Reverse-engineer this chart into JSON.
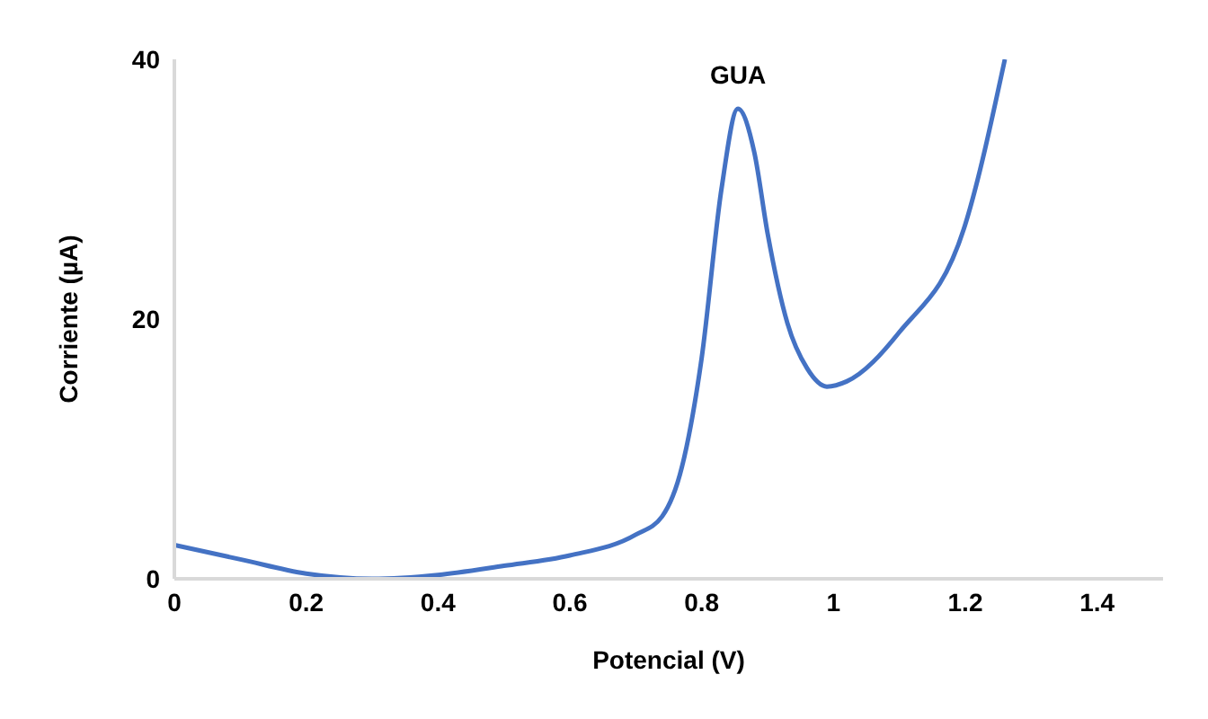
{
  "chart_data": {
    "type": "line",
    "xlabel": "Potencial (V)",
    "ylabel": "Corriente (µA)",
    "x": [
      0,
      0.1,
      0.2,
      0.3,
      0.4,
      0.5,
      0.6,
      0.7,
      0.74,
      0.77,
      0.8,
      0.83,
      0.855,
      0.88,
      0.9,
      0.93,
      0.96,
      0.99,
      1.02,
      1.1,
      1.2,
      1.26
    ],
    "series": [
      {
        "color": "#4472c4",
        "values": [
          2.6,
          1.5,
          0.4,
          0,
          0.3,
          1,
          1.8,
          3.4,
          4.8,
          8.6,
          17,
          30,
          36.2,
          32.8,
          26.6,
          19.7,
          16.2,
          14.8,
          15.2,
          19,
          27.3,
          40
        ]
      }
    ],
    "xlim": [
      0,
      1.5
    ],
    "xticks": [
      0,
      0.2,
      0.4,
      0.6,
      0.8,
      1,
      1.2,
      1.4
    ],
    "ylim": [
      0,
      40
    ],
    "yticks": [
      0,
      20,
      40
    ],
    "annotations": [
      {
        "text": "GUA",
        "x": 0.855,
        "y": 36.2
      }
    ],
    "grid": false,
    "marker": "none",
    "line_style": "solid"
  }
}
